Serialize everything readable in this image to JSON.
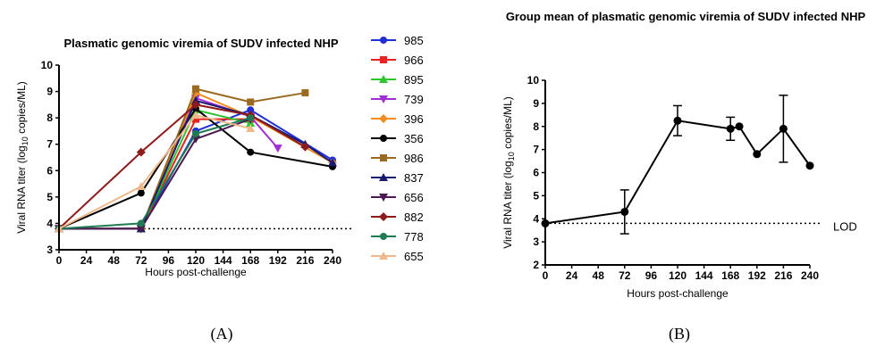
{
  "chart_data": [
    {
      "type": "line",
      "panel_label": "(A)",
      "title": "Plasmatic genomic viremia of SUDV infected NHP",
      "xlabel": "Hours post-challenge",
      "ylabel": "Viral RNA titer (log10 copies/ML)",
      "xlim": [
        0,
        240
      ],
      "ylim": [
        3,
        10
      ],
      "xticks": [
        0,
        24,
        48,
        72,
        96,
        120,
        144,
        168,
        192,
        216,
        240
      ],
      "yticks": [
        3,
        4,
        5,
        6,
        7,
        8,
        9,
        10
      ],
      "grid": false,
      "legend": "right",
      "lod": 3.8,
      "series": [
        {
          "name": "985",
          "color": "#1f2fd6",
          "marker": "circle",
          "points": [
            [
              0,
              3.8
            ],
            [
              72,
              3.8
            ],
            [
              120,
              7.5
            ],
            [
              168,
              8.3
            ],
            [
              240,
              6.4
            ]
          ]
        },
        {
          "name": "966",
          "color": "#e8231f",
          "marker": "square",
          "points": [
            [
              0,
              3.8
            ],
            [
              72,
              3.8
            ],
            [
              120,
              7.95
            ],
            [
              168,
              7.95
            ]
          ]
        },
        {
          "name": "895",
          "color": "#2fc52f",
          "marker": "triangle-up",
          "points": [
            [
              0,
              3.8
            ],
            [
              72,
              3.8
            ],
            [
              120,
              8.3
            ],
            [
              168,
              7.8
            ]
          ]
        },
        {
          "name": "739",
          "color": "#a02ed6",
          "marker": "triangle-down",
          "points": [
            [
              0,
              3.8
            ],
            [
              72,
              3.8
            ],
            [
              120,
              8.75
            ],
            [
              168,
              8.05
            ],
            [
              192,
              6.85
            ]
          ]
        },
        {
          "name": "396",
          "color": "#f28c1e",
          "marker": "diamond",
          "points": [
            [
              0,
              3.8
            ],
            [
              72,
              3.8
            ],
            [
              120,
              8.95
            ],
            [
              168,
              8.05
            ],
            [
              240,
              6.3
            ]
          ]
        },
        {
          "name": "356",
          "color": "#000000",
          "marker": "circle",
          "points": [
            [
              0,
              3.8
            ],
            [
              72,
              5.15
            ],
            [
              120,
              8.35
            ],
            [
              168,
              6.7
            ],
            [
              240,
              6.15
            ]
          ]
        },
        {
          "name": "986",
          "color": "#9b6a22",
          "marker": "square",
          "points": [
            [
              0,
              3.8
            ],
            [
              72,
              3.8
            ],
            [
              120,
              9.1
            ],
            [
              168,
              8.6
            ],
            [
              216,
              8.95
            ]
          ]
        },
        {
          "name": "837",
          "color": "#1a1a6e",
          "marker": "triangle-up",
          "points": [
            [
              0,
              3.8
            ],
            [
              72,
              3.8
            ],
            [
              120,
              8.65
            ],
            [
              168,
              8.1
            ],
            [
              216,
              7.0
            ],
            [
              240,
              6.3
            ]
          ]
        },
        {
          "name": "656",
          "color": "#4b1a50",
          "marker": "triangle-down",
          "points": [
            [
              0,
              3.8
            ],
            [
              72,
              3.8
            ],
            [
              120,
              7.2
            ],
            [
              168,
              7.95
            ]
          ]
        },
        {
          "name": "882",
          "color": "#8e1a1a",
          "marker": "diamond",
          "points": [
            [
              0,
              3.8
            ],
            [
              72,
              6.7
            ],
            [
              120,
              8.5
            ],
            [
              168,
              8.1
            ],
            [
              216,
              6.9
            ]
          ]
        },
        {
          "name": "778",
          "color": "#1e7a52",
          "marker": "circle",
          "points": [
            [
              0,
              3.8
            ],
            [
              72,
              4.0
            ],
            [
              120,
              7.4
            ],
            [
              168,
              8.0
            ]
          ]
        },
        {
          "name": "655",
          "color": "#f0b98c",
          "marker": "triangle-up",
          "points": [
            [
              0,
              3.8
            ],
            [
              72,
              5.4
            ],
            [
              120,
              8.1
            ],
            [
              168,
              7.6
            ]
          ]
        }
      ]
    },
    {
      "type": "line",
      "panel_label": "(B)",
      "title": "Group mean of plasmatic genomic viremia of SUDV infected NHP",
      "xlabel": "Hours post-challenge",
      "ylabel": "Viral RNA titer (log10 copies/ML)",
      "xlim": [
        0,
        240
      ],
      "ylim": [
        2,
        10
      ],
      "xticks": [
        0,
        24,
        48,
        72,
        96,
        120,
        144,
        168,
        192,
        216,
        240
      ],
      "yticks": [
        2,
        3,
        4,
        5,
        6,
        7,
        8,
        9,
        10
      ],
      "grid": false,
      "lod": 3.8,
      "lod_label": "LOD",
      "series": [
        {
          "x": [
            0,
            72,
            120,
            168,
            176,
            192,
            216,
            240
          ],
          "y": [
            3.8,
            4.3,
            8.25,
            7.9,
            8.0,
            6.8,
            7.9,
            6.3
          ],
          "err": [
            0,
            0.95,
            0.65,
            0.5,
            0,
            0,
            1.45,
            0
          ],
          "color": "#000000"
        }
      ]
    }
  ]
}
